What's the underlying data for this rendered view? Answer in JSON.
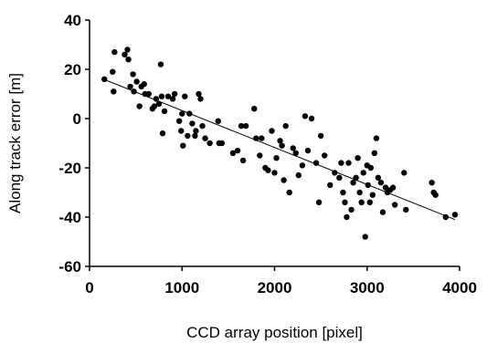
{
  "chart_data": {
    "type": "scatter",
    "title": "",
    "xlabel": "CCD array position [pixel]",
    "ylabel": "Along track error [m]",
    "xlim": [
      0,
      4000
    ],
    "ylim": [
      -60,
      40
    ],
    "xticks": [
      0,
      1000,
      2000,
      3000,
      4000
    ],
    "yticks": [
      -60,
      -40,
      -20,
      0,
      20,
      40
    ],
    "grid": false,
    "legend": "none",
    "marker_color": "#000000",
    "trendline": {
      "type": "linear",
      "from": [
        150,
        16
      ],
      "to": [
        3950,
        -41
      ]
    },
    "series": [
      {
        "points": [
          [
            160,
            16
          ],
          [
            250,
            19
          ],
          [
            260,
            11
          ],
          [
            270,
            27
          ],
          [
            380,
            26
          ],
          [
            410,
            28
          ],
          [
            420,
            24
          ],
          [
            440,
            13
          ],
          [
            470,
            18
          ],
          [
            480,
            11
          ],
          [
            510,
            15
          ],
          [
            540,
            5
          ],
          [
            560,
            13
          ],
          [
            590,
            14
          ],
          [
            600,
            10
          ],
          [
            640,
            10
          ],
          [
            680,
            4
          ],
          [
            700,
            5
          ],
          [
            720,
            8
          ],
          [
            750,
            6
          ],
          [
            770,
            22
          ],
          [
            780,
            9
          ],
          [
            790,
            -6
          ],
          [
            810,
            3
          ],
          [
            850,
            9
          ],
          [
            900,
            8
          ],
          [
            920,
            10
          ],
          [
            970,
            -1
          ],
          [
            990,
            -5
          ],
          [
            1000,
            2
          ],
          [
            1010,
            -11
          ],
          [
            1030,
            9
          ],
          [
            1060,
            -7
          ],
          [
            1080,
            2
          ],
          [
            1110,
            -2
          ],
          [
            1140,
            -7
          ],
          [
            1150,
            -5
          ],
          [
            1180,
            10
          ],
          [
            1200,
            8
          ],
          [
            1220,
            -3
          ],
          [
            1250,
            -8
          ],
          [
            1300,
            -10
          ],
          [
            1390,
            -1
          ],
          [
            1400,
            -10
          ],
          [
            1430,
            -10
          ],
          [
            1550,
            -14
          ],
          [
            1600,
            -13
          ],
          [
            1640,
            -3
          ],
          [
            1660,
            -17
          ],
          [
            1690,
            -3
          ],
          [
            1780,
            4
          ],
          [
            1800,
            -8
          ],
          [
            1840,
            -15
          ],
          [
            1860,
            -8
          ],
          [
            1900,
            -20
          ],
          [
            1930,
            -21
          ],
          [
            1970,
            -5
          ],
          [
            2000,
            -22
          ],
          [
            2020,
            -16
          ],
          [
            2060,
            -9
          ],
          [
            2080,
            -11
          ],
          [
            2100,
            -25
          ],
          [
            2120,
            -3
          ],
          [
            2160,
            -30
          ],
          [
            2200,
            -12
          ],
          [
            2230,
            -14
          ],
          [
            2260,
            -23
          ],
          [
            2300,
            -19
          ],
          [
            2330,
            1
          ],
          [
            2360,
            -13
          ],
          [
            2400,
            0
          ],
          [
            2450,
            -18
          ],
          [
            2480,
            -34
          ],
          [
            2500,
            -7
          ],
          [
            2540,
            -15
          ],
          [
            2600,
            -27
          ],
          [
            2650,
            -22
          ],
          [
            2700,
            -24
          ],
          [
            2720,
            -18
          ],
          [
            2740,
            -30
          ],
          [
            2760,
            -34
          ],
          [
            2780,
            -40
          ],
          [
            2800,
            -18
          ],
          [
            2830,
            -37
          ],
          [
            2850,
            -26
          ],
          [
            2880,
            -24
          ],
          [
            2900,
            -16
          ],
          [
            2920,
            -30
          ],
          [
            2940,
            -34
          ],
          [
            2960,
            -22
          ],
          [
            2980,
            -48
          ],
          [
            3000,
            -19
          ],
          [
            3010,
            -27
          ],
          [
            3030,
            -34
          ],
          [
            3040,
            -20
          ],
          [
            3060,
            -31
          ],
          [
            3080,
            -14
          ],
          [
            3100,
            -8
          ],
          [
            3120,
            -24
          ],
          [
            3150,
            -26
          ],
          [
            3170,
            -38
          ],
          [
            3200,
            -28
          ],
          [
            3220,
            -30
          ],
          [
            3250,
            -29
          ],
          [
            3280,
            -28
          ],
          [
            3300,
            -35
          ],
          [
            3400,
            -22
          ],
          [
            3420,
            -37
          ],
          [
            3700,
            -26
          ],
          [
            3720,
            -30
          ],
          [
            3740,
            -31
          ],
          [
            3850,
            -40
          ],
          [
            3950,
            -39
          ]
        ]
      }
    ]
  }
}
